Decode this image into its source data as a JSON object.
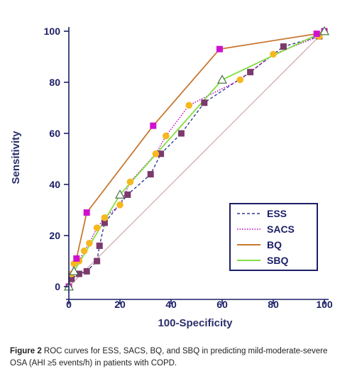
{
  "chart_data": {
    "type": "line",
    "xlabel": "100-Specificity",
    "ylabel": "Sensitivity",
    "xlim": [
      0,
      100
    ],
    "ylim": [
      0,
      100
    ],
    "xticks": [
      "0",
      "20",
      "40",
      "60",
      "80",
      "100"
    ],
    "yticks": [
      "0",
      "20",
      "40",
      "60",
      "80",
      "100"
    ],
    "grid": false,
    "legend_position": "bottom-right",
    "reference_line": true,
    "series": [
      {
        "name": "ESS",
        "color": "#2f3a8f",
        "line_style": "dashed",
        "marker": "square",
        "marker_color": "#7b3a6b",
        "x": [
          0,
          1,
          4,
          7,
          11,
          12,
          14,
          23,
          32,
          36,
          44,
          53,
          71,
          84,
          98,
          100
        ],
        "y": [
          0,
          3,
          5,
          6,
          10,
          16,
          25,
          36,
          44,
          52,
          60,
          72,
          84,
          94,
          98,
          100
        ]
      },
      {
        "name": "SACS",
        "color": "#c000c0",
        "line_style": "dotted",
        "marker": "circle",
        "marker_color": "#f5b820",
        "x": [
          0,
          1,
          2,
          4,
          6,
          8,
          11,
          14,
          20,
          24,
          34,
          38,
          47,
          67,
          80,
          98,
          100
        ],
        "y": [
          0,
          5,
          9,
          10,
          14,
          17,
          23,
          27,
          32,
          41,
          52,
          59,
          71,
          81,
          91,
          98,
          100
        ]
      },
      {
        "name": "BQ",
        "color": "#c87830",
        "line_style": "solid",
        "marker": "square",
        "marker_color": "#d010d0",
        "x": [
          0,
          3,
          7,
          33,
          59,
          97,
          100
        ],
        "y": [
          0,
          11,
          29,
          63,
          93,
          99,
          100
        ]
      },
      {
        "name": "SBQ",
        "color": "#80e040",
        "line_style": "solid",
        "marker": "triangle",
        "marker_color": "#ffffff",
        "x": [
          0,
          2,
          20,
          60,
          100
        ],
        "y": [
          0,
          6,
          36,
          81,
          100
        ]
      }
    ]
  },
  "caption": {
    "label": "Figure 2",
    "text": " ROC curves for ESS, SACS, BQ, and SBQ in predicting mild-moderate-severe OSA (AHI ≥5 events/h) in patients with COPD."
  }
}
